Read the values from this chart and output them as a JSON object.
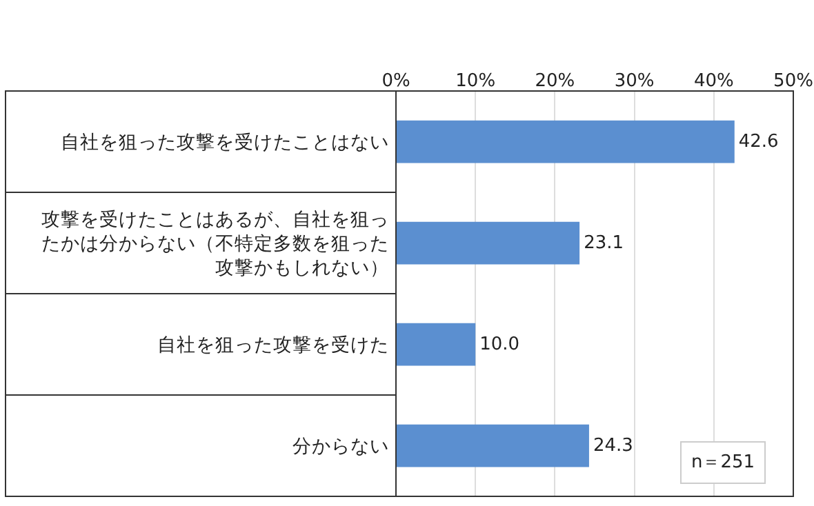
{
  "chart_data": {
    "type": "bar",
    "orientation": "horizontal",
    "categories": [
      "自社を狙った攻撃を受けたことはない",
      "攻撃を受けたことはあるが、自社を狙ったかは分からない（不特定多数を狙った攻撃かもしれない）",
      "自社を狙った攻撃を受けた",
      "分からない"
    ],
    "values": [
      42.6,
      23.1,
      10.0,
      24.3
    ],
    "value_labels": [
      "42.6",
      "23.1",
      "10.0",
      "24.3"
    ],
    "color": "#5b8fd0",
    "xlim": [
      0,
      50
    ],
    "xticks": [
      {
        "value": 0,
        "label": "0%"
      },
      {
        "value": 10,
        "label": "10%"
      },
      {
        "value": 20,
        "label": "20%"
      },
      {
        "value": 30,
        "label": "30%"
      },
      {
        "value": 40,
        "label": "40%"
      },
      {
        "value": 50,
        "label": "50%"
      }
    ],
    "grid": "x",
    "annotations": [
      "n＝251"
    ]
  }
}
